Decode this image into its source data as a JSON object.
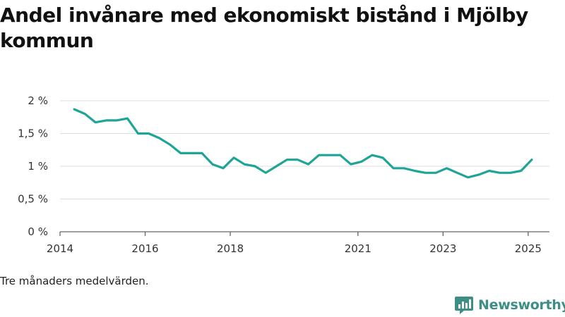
{
  "title": "Andel invånare med ekonomiskt bistånd i Mjölby kommun",
  "note": "Tre månaders medelvärden.",
  "brand": {
    "name": "Newsworthy",
    "icon": "newsworthy-logo-icon",
    "color": "#3d8f86"
  },
  "chart_data": {
    "type": "line",
    "title": "Andel invånare med ekonomiskt bistånd i Mjölby kommun",
    "xlabel": "",
    "ylabel": "",
    "x_ticks": [
      "2014",
      "2016",
      "2018",
      "2021",
      "2023",
      "2025"
    ],
    "y_ticks": [
      "0 %",
      "0,5 %",
      "1 %",
      "1,5 %",
      "2 %"
    ],
    "ylim": [
      0,
      2
    ],
    "xlim": [
      "2014-01",
      "2025-06"
    ],
    "grid": true,
    "legend": "none",
    "line_color": "#1fa597",
    "series": [
      {
        "name": "",
        "x": [
          "2014-05",
          "2014-08",
          "2014-11",
          "2015-02",
          "2015-05",
          "2015-08",
          "2015-11",
          "2016-02",
          "2016-05",
          "2016-08",
          "2016-11",
          "2017-02",
          "2017-05",
          "2017-08",
          "2017-11",
          "2018-02",
          "2018-05",
          "2018-08",
          "2018-11",
          "2019-02",
          "2019-05",
          "2019-08",
          "2019-11",
          "2020-02",
          "2020-05",
          "2020-08",
          "2020-11",
          "2021-02",
          "2021-05",
          "2021-08",
          "2021-11",
          "2022-02",
          "2022-05",
          "2022-08",
          "2022-11",
          "2023-02",
          "2023-05",
          "2023-08",
          "2023-11",
          "2024-02",
          "2024-05",
          "2024-08",
          "2024-11",
          "2025-02"
        ],
        "values": [
          1.87,
          1.8,
          1.67,
          1.7,
          1.7,
          1.73,
          1.5,
          1.5,
          1.43,
          1.33,
          1.2,
          1.2,
          1.2,
          1.03,
          0.97,
          1.13,
          1.03,
          1.0,
          0.9,
          1.0,
          1.1,
          1.1,
          1.03,
          1.17,
          1.17,
          1.17,
          1.03,
          1.07,
          1.17,
          1.13,
          0.97,
          0.97,
          0.93,
          0.9,
          0.9,
          0.97,
          0.9,
          0.83,
          0.87,
          0.93,
          0.9,
          0.9,
          0.93,
          1.1
        ]
      }
    ]
  }
}
